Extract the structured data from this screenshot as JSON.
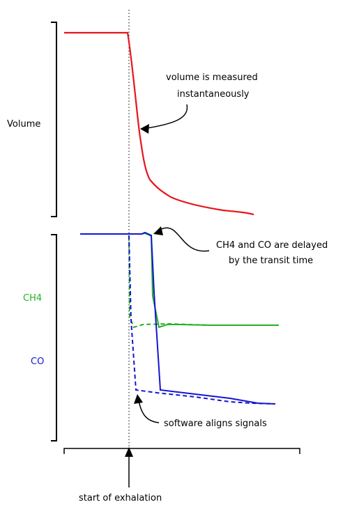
{
  "labels": {
    "volume": "Volume",
    "ch4": "CH4",
    "co": "CO",
    "start": "start of exhalation"
  },
  "annotations": {
    "volume_line1": "volume is measured",
    "volume_line2": "instantaneously",
    "delay_line1": "CH4 and CO are delayed",
    "delay_line2": "by the transit time",
    "align": "software aligns signals"
  },
  "colors": {
    "volume": "#e8141b",
    "ch4": "#23b223",
    "co": "#1414d2",
    "ink": "#000000"
  }
}
